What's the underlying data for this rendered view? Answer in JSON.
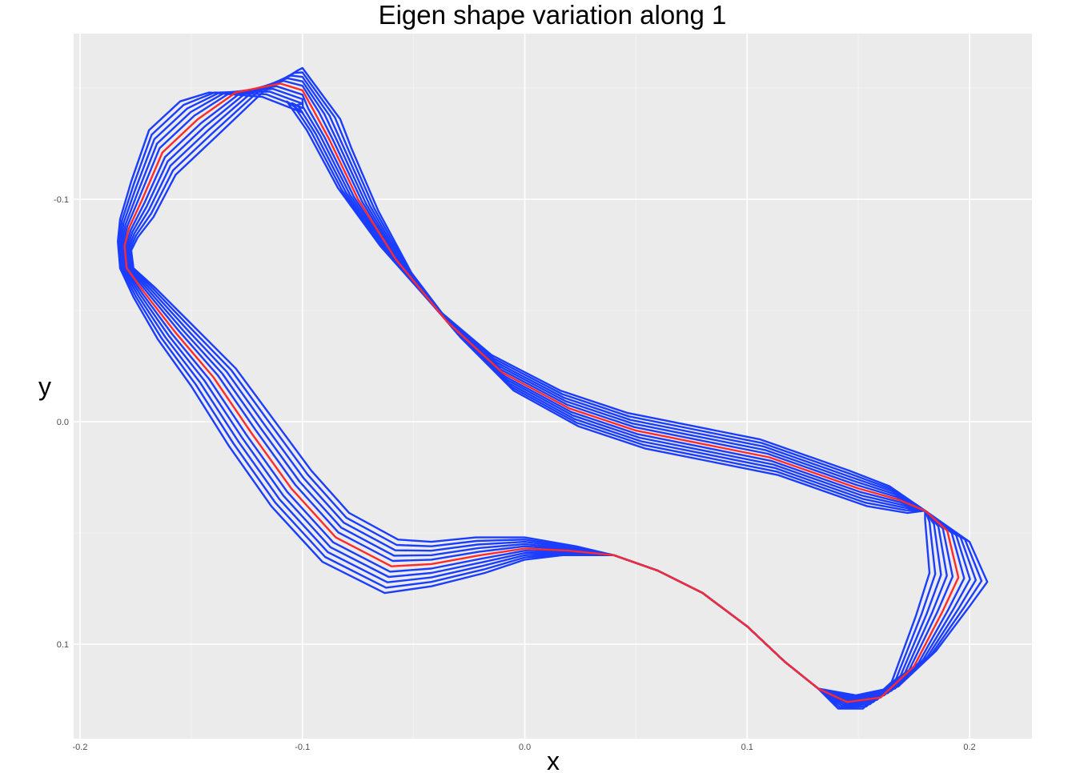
{
  "chart_data": {
    "type": "line",
    "title": "Eigen shape variation along  1",
    "xlabel": "x",
    "ylabel": "y",
    "xlim": [
      -0.2,
      0.226
    ],
    "ylim": [
      -0.172,
      0.14
    ],
    "y_reversed": true,
    "grid": true,
    "x_ticks": [
      -0.2,
      -0.1,
      0.0,
      0.1,
      0.2
    ],
    "x_tick_labels": [
      "-0.2",
      "-0.1",
      "0.0",
      "0.1",
      "0.2"
    ],
    "y_ticks": [
      -0.1,
      0.0,
      0.1
    ],
    "y_tick_labels": [
      "-0.1",
      "0.0",
      "0.1"
    ],
    "colors": {
      "variant": "#1a3dff",
      "mean": "#ff2a2a",
      "panel": "#ebebeb",
      "grid": "#ffffff"
    },
    "mean_shape": [
      [
        -0.1,
        -0.149
      ],
      [
        -0.11,
        -0.152
      ],
      [
        -0.13,
        -0.148
      ],
      [
        -0.147,
        -0.136
      ],
      [
        -0.163,
        -0.121
      ],
      [
        -0.172,
        -0.1
      ],
      [
        -0.178,
        -0.087
      ],
      [
        -0.18,
        -0.079
      ],
      [
        -0.179,
        -0.069
      ],
      [
        -0.171,
        -0.058
      ],
      [
        -0.157,
        -0.04
      ],
      [
        -0.14,
        -0.02
      ],
      [
        -0.123,
        0.005
      ],
      [
        -0.105,
        0.03
      ],
      [
        -0.085,
        0.052
      ],
      [
        -0.06,
        0.065
      ],
      [
        -0.042,
        0.064
      ],
      [
        -0.02,
        0.06
      ],
      [
        0.0,
        0.057
      ],
      [
        0.02,
        0.058
      ],
      [
        0.04,
        0.06
      ],
      [
        0.06,
        0.067
      ],
      [
        0.08,
        0.077
      ],
      [
        0.1,
        0.092
      ],
      [
        0.117,
        0.108
      ],
      [
        0.132,
        0.12
      ],
      [
        0.145,
        0.126
      ],
      [
        0.16,
        0.124
      ],
      [
        0.175,
        0.11
      ],
      [
        0.188,
        0.085
      ],
      [
        0.195,
        0.07
      ],
      [
        0.19,
        0.049
      ],
      [
        0.18,
        0.04
      ],
      [
        0.168,
        0.035
      ],
      [
        0.15,
        0.03
      ],
      [
        0.13,
        0.023
      ],
      [
        0.11,
        0.016
      ],
      [
        0.08,
        0.01
      ],
      [
        0.05,
        0.004
      ],
      [
        0.02,
        -0.006
      ],
      [
        -0.01,
        -0.022
      ],
      [
        -0.035,
        -0.045
      ],
      [
        -0.058,
        -0.073
      ],
      [
        -0.075,
        -0.1
      ],
      [
        -0.088,
        -0.127
      ],
      [
        -0.095,
        -0.14
      ],
      [
        -0.1,
        -0.149
      ]
    ],
    "pc1_direction": [
      [
        0.0,
        0.01
      ],
      [
        -0.008,
        0.006
      ],
      [
        -0.012,
        0.0
      ],
      [
        -0.008,
        -0.008
      ],
      [
        -0.006,
        -0.01
      ],
      [
        -0.005,
        -0.008
      ],
      [
        -0.004,
        -0.004
      ],
      [
        -0.003,
        -0.002
      ],
      [
        -0.003,
        0.0
      ],
      [
        -0.005,
        0.002
      ],
      [
        -0.008,
        0.003
      ],
      [
        -0.01,
        0.004
      ],
      [
        -0.01,
        0.006
      ],
      [
        -0.009,
        0.008
      ],
      [
        -0.006,
        0.011
      ],
      [
        -0.003,
        0.012
      ],
      [
        0.0,
        0.01
      ],
      [
        0.002,
        0.008
      ],
      [
        0.0,
        0.005
      ],
      [
        -0.003,
        0.002
      ],
      [
        0.0,
        0.0
      ],
      [
        0.0,
        0.0
      ],
      [
        0.0,
        0.0
      ],
      [
        0.0,
        0.0
      ],
      [
        0.0,
        0.0
      ],
      [
        0.0,
        0.0
      ],
      [
        0.004,
        -0.003
      ],
      [
        0.008,
        -0.005
      ],
      [
        0.01,
        -0.007
      ],
      [
        0.012,
        -0.002
      ],
      [
        0.013,
        0.002
      ],
      [
        0.01,
        0.005
      ],
      [
        0.0,
        0.0
      ],
      [
        -0.004,
        -0.006
      ],
      [
        -0.004,
        -0.008
      ],
      [
        -0.004,
        -0.008
      ],
      [
        -0.004,
        -0.008
      ],
      [
        -0.004,
        -0.008
      ],
      [
        -0.004,
        -0.008
      ],
      [
        -0.004,
        -0.008
      ],
      [
        -0.005,
        -0.008
      ],
      [
        -0.006,
        -0.007
      ],
      [
        -0.007,
        -0.006
      ],
      [
        -0.009,
        -0.005
      ],
      [
        -0.01,
        -0.004
      ],
      [
        -0.012,
        -0.004
      ],
      [
        0.0,
        0.01
      ]
    ],
    "variation_steps": [
      -5,
      -4,
      -3,
      -2,
      -1,
      1,
      2,
      3,
      4,
      5
    ]
  }
}
